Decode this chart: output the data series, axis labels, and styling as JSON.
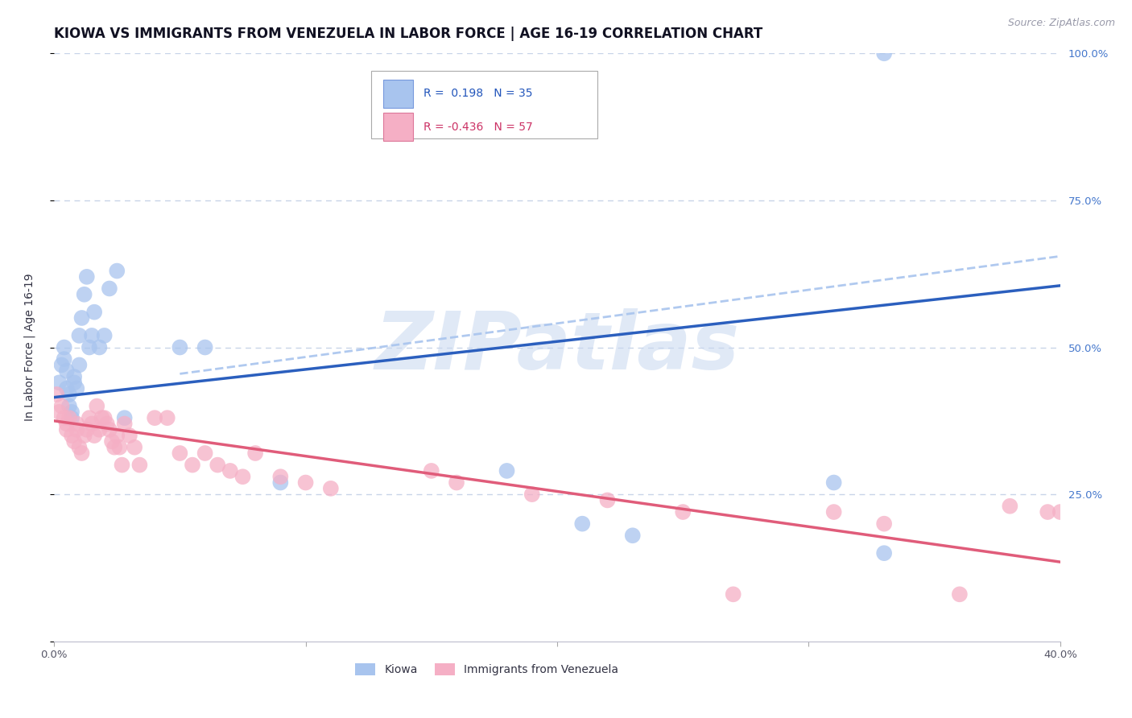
{
  "title": "KIOWA VS IMMIGRANTS FROM VENEZUELA IN LABOR FORCE | AGE 16-19 CORRELATION CHART",
  "source": "Source: ZipAtlas.com",
  "ylabel": "In Labor Force | Age 16-19",
  "xlim": [
    0.0,
    0.4
  ],
  "ylim": [
    0.0,
    1.0
  ],
  "kiowa_R": 0.198,
  "kiowa_N": 35,
  "venez_R": -0.436,
  "venez_N": 57,
  "kiowa_color": "#a8c4ee",
  "venez_color": "#f5afc5",
  "kiowa_line_color": "#2b5fbe",
  "venez_line_color": "#e05c7a",
  "dashed_line_color": "#a8c4ee",
  "watermark": "ZIPatlas",
  "watermark_color": "#c8d8f0",
  "background_color": "#ffffff",
  "grid_color": "#c8d4e8",
  "title_fontsize": 12,
  "label_fontsize": 10,
  "tick_fontsize": 9.5,
  "kiowa_line_x0": 0.0,
  "kiowa_line_y0": 0.415,
  "kiowa_line_x1": 0.4,
  "kiowa_line_y1": 0.605,
  "venez_line_x0": 0.0,
  "venez_line_y0": 0.375,
  "venez_line_x1": 0.4,
  "venez_line_y1": 0.135,
  "dash_line_x0": 0.05,
  "dash_line_y0": 0.455,
  "dash_line_x1": 0.4,
  "dash_line_y1": 0.655,
  "kiowa_x": [
    0.002,
    0.003,
    0.004,
    0.004,
    0.005,
    0.005,
    0.006,
    0.006,
    0.007,
    0.007,
    0.008,
    0.008,
    0.009,
    0.01,
    0.01,
    0.011,
    0.012,
    0.013,
    0.014,
    0.015,
    0.016,
    0.018,
    0.02,
    0.022,
    0.025,
    0.028,
    0.05,
    0.06,
    0.09,
    0.18,
    0.21,
    0.23,
    0.31,
    0.33,
    0.33
  ],
  "kiowa_y": [
    0.44,
    0.47,
    0.48,
    0.5,
    0.46,
    0.43,
    0.42,
    0.4,
    0.39,
    0.38,
    0.45,
    0.44,
    0.43,
    0.47,
    0.52,
    0.55,
    0.59,
    0.62,
    0.5,
    0.52,
    0.56,
    0.5,
    0.52,
    0.6,
    0.63,
    0.38,
    0.5,
    0.5,
    0.27,
    0.29,
    0.2,
    0.18,
    0.27,
    0.15,
    1.0
  ],
  "venez_x": [
    0.001,
    0.002,
    0.003,
    0.004,
    0.005,
    0.005,
    0.006,
    0.007,
    0.008,
    0.009,
    0.009,
    0.01,
    0.011,
    0.012,
    0.013,
    0.014,
    0.015,
    0.016,
    0.017,
    0.018,
    0.019,
    0.02,
    0.021,
    0.022,
    0.023,
    0.024,
    0.025,
    0.026,
    0.027,
    0.028,
    0.03,
    0.032,
    0.034,
    0.04,
    0.045,
    0.05,
    0.055,
    0.06,
    0.065,
    0.07,
    0.075,
    0.08,
    0.09,
    0.1,
    0.11,
    0.15,
    0.16,
    0.19,
    0.22,
    0.25,
    0.27,
    0.31,
    0.33,
    0.36,
    0.38,
    0.395,
    0.4
  ],
  "venez_y": [
    0.42,
    0.39,
    0.4,
    0.38,
    0.37,
    0.36,
    0.38,
    0.35,
    0.34,
    0.36,
    0.37,
    0.33,
    0.32,
    0.35,
    0.36,
    0.38,
    0.37,
    0.35,
    0.4,
    0.36,
    0.38,
    0.38,
    0.37,
    0.36,
    0.34,
    0.33,
    0.35,
    0.33,
    0.3,
    0.37,
    0.35,
    0.33,
    0.3,
    0.38,
    0.38,
    0.32,
    0.3,
    0.32,
    0.3,
    0.29,
    0.28,
    0.32,
    0.28,
    0.27,
    0.26,
    0.29,
    0.27,
    0.25,
    0.24,
    0.22,
    0.08,
    0.22,
    0.2,
    0.08,
    0.23,
    0.22,
    0.22
  ]
}
